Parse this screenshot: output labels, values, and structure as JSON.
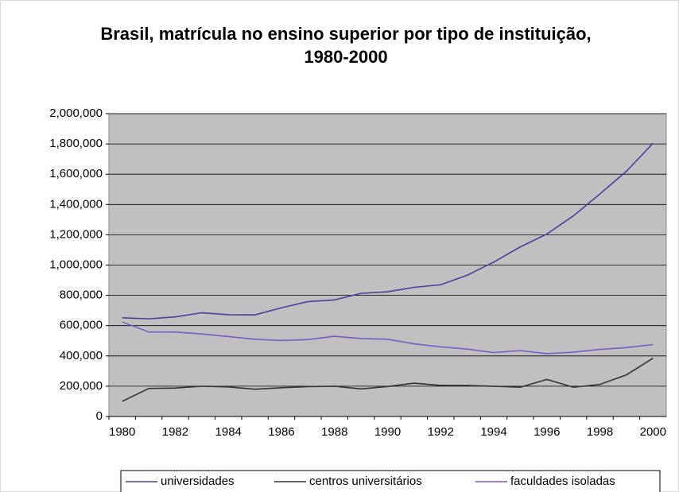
{
  "chart_data": {
    "type": "line",
    "title": "Brasil, matrícula no ensino superior por tipo de instituição, 1980-2000",
    "categories": [
      "1980",
      null,
      "1982",
      null,
      "1984",
      null,
      "1986",
      null,
      "1988",
      null,
      "1990",
      null,
      "1992",
      null,
      "1994",
      null,
      "1996",
      null,
      "1998",
      null,
      "2000"
    ],
    "series": [
      {
        "name": "universidades",
        "color": "#4b3f9e",
        "values": [
          652000,
          645000,
          658000,
          685000,
          672000,
          671000,
          718000,
          759000,
          770000,
          813000,
          824000,
          853000,
          870000,
          933000,
          1020000,
          1120000,
          1205000,
          1325000,
          1470000,
          1620000,
          1805000
        ]
      },
      {
        "name": "centros universitários",
        "color": "#333333",
        "values": [
          100000,
          185000,
          188000,
          200000,
          195000,
          180000,
          190000,
          197000,
          200000,
          182000,
          198000,
          220000,
          205000,
          205000,
          200000,
          193000,
          245000,
          193000,
          212000,
          275000,
          385000
        ]
      },
      {
        "name": "faculdades isoladas",
        "color": "#7a5cc8",
        "values": [
          625000,
          558000,
          558000,
          545000,
          528000,
          510000,
          502000,
          508000,
          530000,
          515000,
          510000,
          480000,
          460000,
          445000,
          422000,
          435000,
          415000,
          425000,
          443000,
          455000,
          475000
        ]
      }
    ],
    "ylim": [
      0,
      2000000
    ],
    "yticks": [
      0,
      {
        "value": 200000,
        "label": "200,000"
      },
      {
        "value": 400000,
        "label": "400,000"
      },
      {
        "value": 600000,
        "label": "600,000"
      },
      {
        "value": 800000,
        "label": "800,000"
      },
      {
        "value": 1000000,
        "label": "1,000,000"
      },
      {
        "value": 1200000,
        "label": "1,200,000"
      },
      {
        "value": 1400000,
        "label": "1,400,000"
      },
      {
        "value": 1600000,
        "label": "1,600,000"
      },
      {
        "value": 1800000,
        "label": "1,800,000"
      },
      {
        "value": 2000000,
        "label": "2,000,000"
      }
    ],
    "grid": true,
    "legend": "bottom"
  }
}
